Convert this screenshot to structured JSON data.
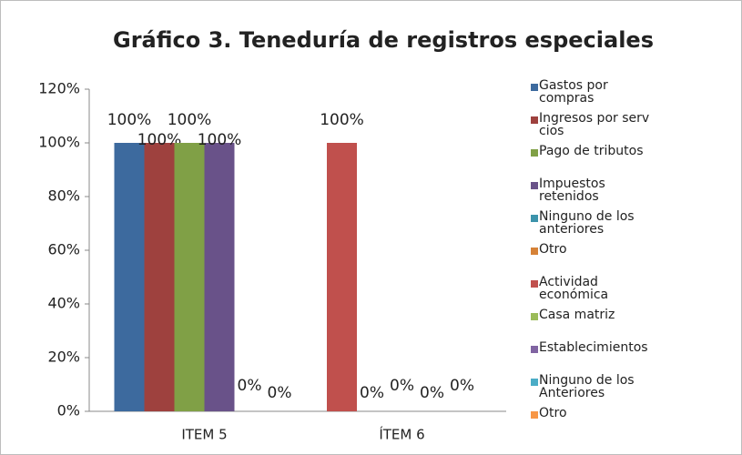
{
  "chart_data": {
    "type": "bar",
    "title": "Gráfico 3. Teneduría de registros especiales",
    "categories": [
      "ITEM 5",
      "ÍTEM 6"
    ],
    "series": [
      {
        "name": "Gastos por compras",
        "color": "#3d6a9e",
        "values": [
          100,
          null
        ],
        "value_labels": [
          "100%",
          null
        ]
      },
      {
        "name": "Ingresos por serv cios",
        "color": "#9e413e",
        "values": [
          100,
          null
        ],
        "value_labels": [
          "100%",
          null
        ]
      },
      {
        "name": "Pago de tributos",
        "color": "#80a046",
        "values": [
          100,
          null
        ],
        "value_labels": [
          "100%",
          null
        ]
      },
      {
        "name": "Impuestos retenidos",
        "color": "#695289",
        "values": [
          100,
          null
        ],
        "value_labels": [
          "100%",
          null
        ]
      },
      {
        "name": "Ninguno de los anteriores",
        "color": "#3c93ab",
        "values": [
          0,
          null
        ],
        "value_labels": [
          "0%",
          null
        ]
      },
      {
        "name": "Otro",
        "color": "#d68237",
        "values": [
          0,
          null
        ],
        "value_labels": [
          "0%",
          null
        ]
      },
      {
        "name": "Actividad económica",
        "color": "#c0504d",
        "values": [
          null,
          100
        ],
        "value_labels": [
          null,
          "100%"
        ]
      },
      {
        "name": "Casa matriz",
        "color": "#9bbb59",
        "values": [
          null,
          0
        ],
        "value_labels": [
          null,
          "0%"
        ]
      },
      {
        "name": "Establecimientos",
        "color": "#8064a2",
        "values": [
          null,
          0
        ],
        "value_labels": [
          null,
          "0%"
        ]
      },
      {
        "name": "Ninguno de los Anteriores",
        "color": "#4bacc6",
        "values": [
          null,
          0
        ],
        "value_labels": [
          null,
          "0%"
        ]
      },
      {
        "name": "Otro",
        "color": "#f79646",
        "values": [
          null,
          0
        ],
        "value_labels": [
          null,
          "0%"
        ]
      }
    ],
    "ylim": [
      0,
      120
    ],
    "yticks": [
      {
        "value": 0,
        "label": "0%"
      },
      {
        "value": 20,
        "label": "20%"
      },
      {
        "value": 40,
        "label": "40%"
      },
      {
        "value": 60,
        "label": "60%"
      },
      {
        "value": 80,
        "label": "80%"
      },
      {
        "value": 100,
        "label": "100%"
      },
      {
        "value": 120,
        "label": "120%"
      }
    ],
    "legend": "right"
  }
}
